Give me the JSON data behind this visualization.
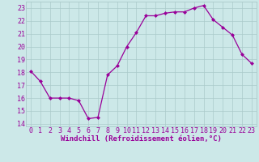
{
  "x": [
    0,
    1,
    2,
    3,
    4,
    5,
    6,
    7,
    8,
    9,
    10,
    11,
    12,
    13,
    14,
    15,
    16,
    17,
    18,
    19,
    20,
    21,
    22,
    23
  ],
  "y": [
    18.1,
    17.3,
    16.0,
    16.0,
    16.0,
    15.8,
    14.4,
    14.5,
    17.8,
    18.5,
    20.0,
    21.1,
    22.4,
    22.4,
    22.6,
    22.7,
    22.7,
    23.0,
    23.2,
    22.1,
    21.5,
    20.9,
    19.4,
    18.7
  ],
  "line_color": "#990099",
  "marker": "D",
  "marker_size": 2.0,
  "linewidth": 0.9,
  "xlim": [
    -0.5,
    23.5
  ],
  "ylim": [
    13.8,
    23.5
  ],
  "yticks": [
    14,
    15,
    16,
    17,
    18,
    19,
    20,
    21,
    22,
    23
  ],
  "xticks": [
    0,
    1,
    2,
    3,
    4,
    5,
    6,
    7,
    8,
    9,
    10,
    11,
    12,
    13,
    14,
    15,
    16,
    17,
    18,
    19,
    20,
    21,
    22,
    23
  ],
  "xlabel": "Windchill (Refroidissement éolien,°C)",
  "xlabel_fontsize": 6.5,
  "tick_fontsize": 6.0,
  "bg_color": "#cce8e8",
  "grid_color": "#aacaca",
  "line_purple": "#990099"
}
